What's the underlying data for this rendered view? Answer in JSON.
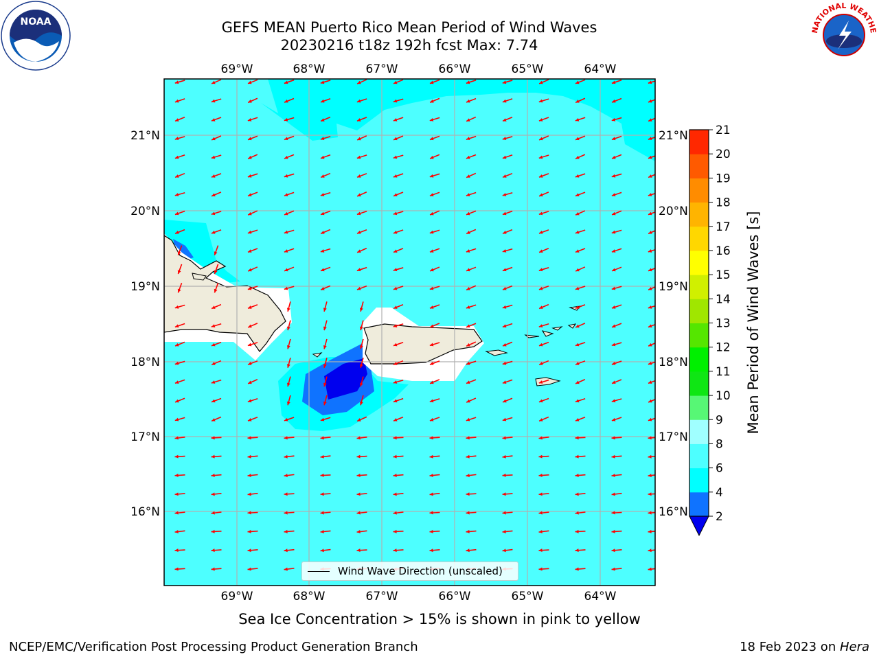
{
  "title_line1": "GEFS MEAN Puerto Rico Mean Period of Wind Waves",
  "title_line2": "20230216 t18z 192h fcst   Max: 7.74",
  "map": {
    "lon_labels": [
      "69°W",
      "68°W",
      "67°W",
      "66°W",
      "65°W",
      "64°W"
    ],
    "lat_labels": [
      "21°N",
      "20°N",
      "19°N",
      "18°N",
      "17°N",
      "16°N"
    ],
    "land_color": "#efecdc",
    "ocean_color": "#4dffff",
    "arrow_color": "#ff0000"
  },
  "colorbar": {
    "label": "Mean Period of Wind Waves [s]",
    "ticks": [
      "2",
      "4",
      "6",
      "8",
      "9",
      "10",
      "11",
      "12",
      "13",
      "14",
      "15",
      "16",
      "17",
      "18",
      "19",
      "20",
      "21"
    ],
    "colors": [
      "#0f73ff",
      "#00ffff",
      "#4dffff",
      "#a0ffff",
      "#57f775",
      "#0fe614",
      "#00f000",
      "#55e600",
      "#a0e600",
      "#d0f000",
      "#ffff00",
      "#ffd700",
      "#ffb400",
      "#ff8c00",
      "#ff5a00",
      "#ff2800"
    ],
    "under_color": "#0000ee"
  },
  "legend_label": "Wind Wave Direction (unscaled)",
  "note": "Sea Ice Concentration > 15% is shown in pink to yellow",
  "footer_left": "NCEP/EMC/Verification Post Processing Product Generation Branch",
  "footer_right_prefix": "18 Feb 2023 on ",
  "footer_right_host": "Hera",
  "logos": {
    "left": "NOAA",
    "right": "NATIONAL WEATHER SERVICE"
  }
}
